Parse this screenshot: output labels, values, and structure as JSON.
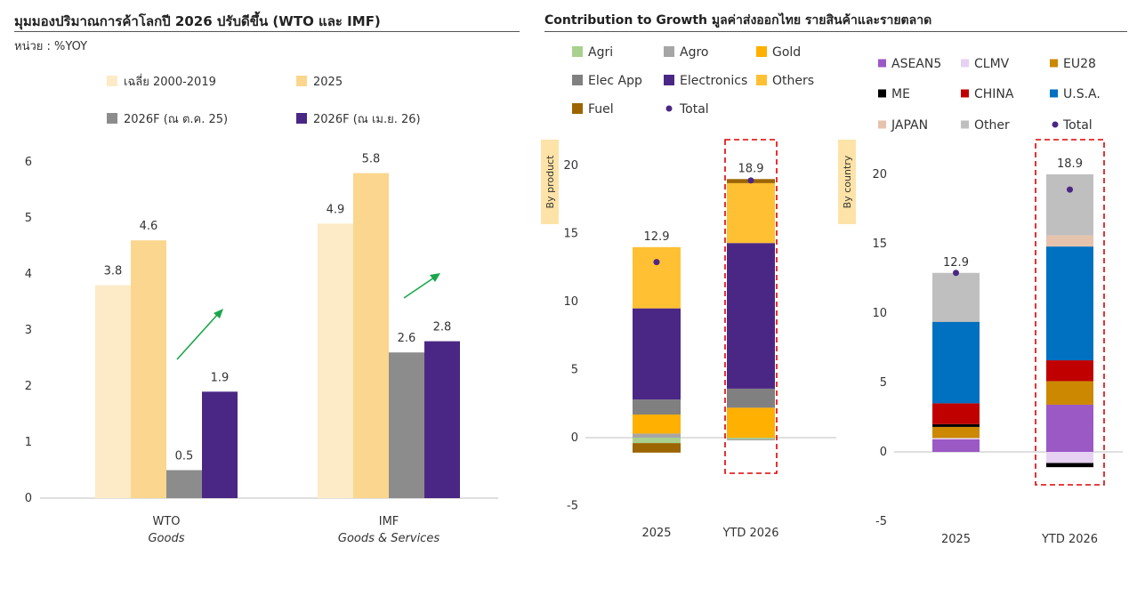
{
  "left_panel": {
    "title": "มุมมองปริมาณการค้าโลกปี 2026 ปรับดีขึ้น (WTO และ IMF)",
    "unit": "หน่วย : %YOY"
  },
  "right_panel": {
    "title": "Contribution to Growth มูลค่าส่งออกไทย รายสินค้าและรายตลาด"
  },
  "chart_data": [
    {
      "type": "bar",
      "ylim": [
        0,
        6
      ],
      "yticks": [
        0,
        1,
        2,
        3,
        4,
        5,
        6
      ],
      "categories": [
        {
          "name": "WTO",
          "sub": "Goods"
        },
        {
          "name": "IMF",
          "sub": "Goods & Services"
        }
      ],
      "series": [
        {
          "name": "เฉลี่ย 2000-2019",
          "color": "#FDEBC8",
          "values": [
            3.8,
            4.9
          ]
        },
        {
          "name": "2025",
          "color": "#FBD68E",
          "values": [
            4.6,
            5.8
          ]
        },
        {
          "name": "2026F (ณ ต.ค. 25)",
          "color": "#8C8C8C",
          "values": [
            0.5,
            2.6
          ]
        },
        {
          "name": "2026F (ณ เม.ย. 26)",
          "color": "#4B2785",
          "values": [
            1.9,
            2.8
          ]
        }
      ],
      "data_labels": [
        [
          "3.8",
          "4.6",
          "0.5",
          "1.9"
        ],
        [
          "4.9",
          "5.8",
          "2.6",
          "2.8"
        ]
      ],
      "legend": "top",
      "annotation": "green arrows indicating upward revision",
      "arrow_color": "#1AA64A"
    },
    {
      "type": "bar",
      "stacked": true,
      "side_label": "By product",
      "ylim": [
        -5,
        20
      ],
      "yticks": [
        -5,
        0,
        5,
        10,
        15,
        20
      ],
      "categories": [
        "2025",
        "YTD 2026"
      ],
      "series": [
        {
          "name": "Agri",
          "color": "#A9D08E",
          "values": [
            -0.4,
            -0.1
          ]
        },
        {
          "name": "Agro",
          "color": "#A6A6A6",
          "values": [
            0.3,
            -0.1
          ]
        },
        {
          "name": "Gold",
          "color": "#FFB000",
          "values": [
            1.4,
            2.2
          ]
        },
        {
          "name": "Elec App",
          "color": "#808080",
          "values": [
            1.1,
            1.4
          ]
        },
        {
          "name": "Electronics",
          "color": "#4B2785",
          "values": [
            6.7,
            10.7
          ]
        },
        {
          "name": "Others",
          "color": "#FFC033",
          "values": [
            4.5,
            4.4
          ]
        },
        {
          "name": "Fuel",
          "color": "#9C6500",
          "values": [
            -0.7,
            0.3
          ]
        }
      ],
      "total": {
        "name": "Total",
        "color": "#4B2785",
        "values": [
          12.9,
          18.9
        ]
      },
      "total_labels": [
        "12.9",
        "18.9"
      ],
      "highlight_category": "YTD 2026",
      "legend": "top"
    },
    {
      "type": "bar",
      "stacked": true,
      "side_label": "By country",
      "ylim": [
        -5,
        20
      ],
      "yticks": [
        -5,
        0,
        5,
        10,
        15,
        20
      ],
      "categories": [
        "2025",
        "YTD 2026"
      ],
      "series": [
        {
          "name": "ASEAN5",
          "color": "#9B59C6",
          "values": [
            0.9,
            3.4
          ]
        },
        {
          "name": "CLMV",
          "color": "#E6D1F2",
          "values": [
            0.1,
            -0.8
          ]
        },
        {
          "name": "EU28",
          "color": "#CC8800",
          "values": [
            0.8,
            1.7
          ]
        },
        {
          "name": "ME",
          "color": "#000000",
          "values": [
            0.2,
            -0.3
          ]
        },
        {
          "name": "CHINA",
          "color": "#C00000",
          "values": [
            1.5,
            1.5
          ]
        },
        {
          "name": "U.S.A.",
          "color": "#0070C0",
          "values": [
            5.9,
            8.2
          ]
        },
        {
          "name": "JAPAN",
          "color": "#E6C3AD",
          "values": [
            0.0,
            0.8
          ]
        },
        {
          "name": "Other",
          "color": "#BFBFBF",
          "values": [
            3.5,
            4.4
          ]
        }
      ],
      "total": {
        "name": "Total",
        "color": "#4B2785",
        "values": [
          12.9,
          18.9
        ]
      },
      "total_labels": [
        "12.9",
        "18.9"
      ],
      "highlight_category": "YTD 2026",
      "legend": "top"
    }
  ]
}
